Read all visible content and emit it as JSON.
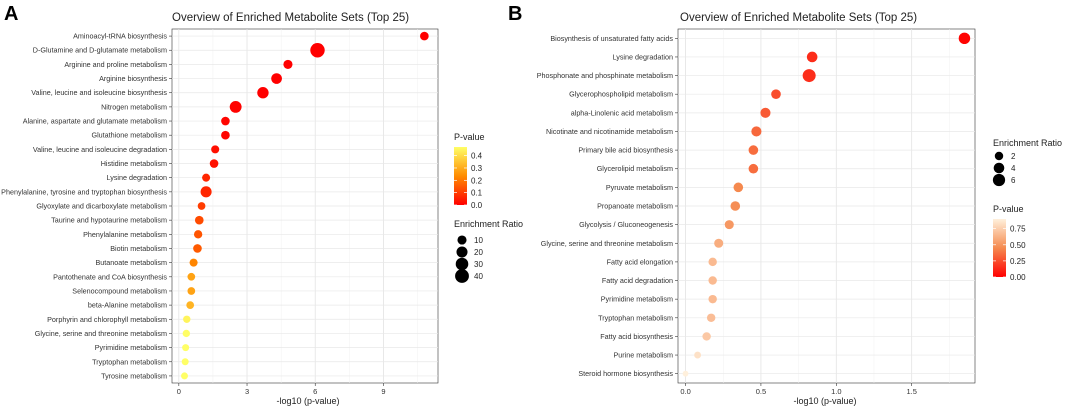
{
  "chart_data": [
    {
      "panel_label": "A",
      "type": "scatter",
      "title": "Overview of Enriched Metabolite Sets (Top 25)",
      "xlabel": "-log10 (p-value)",
      "ylabel": "",
      "xlim": [
        -0.3,
        11.4
      ],
      "xticks": [
        0,
        3,
        6,
        9
      ],
      "grid": true,
      "categories": [
        "Aminoacyl-tRNA biosynthesis",
        "D-Glutamine and D-glutamate metabolism",
        "Arginine and proline metabolism",
        "Arginine biosynthesis",
        "Valine, leucine and isoleucine biosynthesis",
        "Nitrogen metabolism",
        "Alanine, aspartate and glutamate metabolism",
        "Glutathione metabolism",
        "Valine, leucine and isoleucine degradation",
        "Histidine metabolism",
        "Lysine degradation",
        "Phenylalanine, tyrosine and tryptophan biosynthesis",
        "Glyoxylate and dicarboxylate metabolism",
        "Taurine and hypotaurine metabolism",
        "Phenylalanine metabolism",
        "Biotin metabolism",
        "Butanoate metabolism",
        "Pantothenate and CoA biosynthesis",
        "Selenocompound metabolism",
        "beta-Alanine metabolism",
        "Porphyrin and chlorophyll metabolism",
        "Glycine, serine and threonine metabolism",
        "Pyrimidine metabolism",
        "Tryptophan metabolism",
        "Tyrosine metabolism"
      ],
      "x": [
        10.8,
        6.1,
        4.8,
        4.3,
        3.7,
        2.5,
        2.05,
        2.05,
        1.6,
        1.55,
        1.2,
        1.2,
        1.0,
        0.9,
        0.85,
        0.82,
        0.65,
        0.55,
        0.55,
        0.5,
        0.35,
        0.33,
        0.3,
        0.28,
        0.25
      ],
      "pvalue": [
        0.0,
        0.0,
        0.0,
        0.0,
        0.0,
        0.003,
        0.009,
        0.009,
        0.025,
        0.028,
        0.063,
        0.063,
        0.1,
        0.126,
        0.141,
        0.151,
        0.224,
        0.282,
        0.282,
        0.316,
        0.447,
        0.468,
        0.5,
        0.525,
        0.562
      ],
      "enrichment_ratio": [
        8,
        45,
        10,
        18,
        22,
        25,
        8,
        8,
        6,
        8,
        6,
        20,
        5,
        8,
        7,
        8,
        6,
        5,
        5,
        5,
        4,
        4,
        3,
        3,
        3
      ],
      "color_legend": {
        "title": "P-value",
        "ticks": [
          0.0,
          0.1,
          0.2,
          0.3,
          0.4
        ],
        "tick_labels": [
          "0.0",
          "0.1",
          "0.2",
          "0.3",
          "0.4"
        ],
        "range": [
          0,
          0.47
        ]
      },
      "size_legend": {
        "title": "Enrichment Ratio",
        "values": [
          10,
          20,
          30,
          40
        ],
        "labels": [
          "10",
          "20",
          "30",
          "40"
        ],
        "max": 45
      },
      "colors": {
        "low": "#ff0000",
        "mid": "#ff8c00",
        "high": "#ffff66"
      }
    },
    {
      "panel_label": "B",
      "type": "scatter",
      "title": "Overview of Enriched Metabolite Sets (Top 25)",
      "xlabel": "-log10 (p-value)",
      "ylabel": "",
      "xlim": [
        -0.05,
        1.92
      ],
      "xticks": [
        0,
        0.5,
        1,
        1.5
      ],
      "xtick_labels": [
        "0.0",
        "0.5",
        "1.0",
        "1.5"
      ],
      "grid": true,
      "categories": [
        "Biosynthesis of unsaturated fatty acids",
        "Lysine degradation",
        "Phosphonate and phosphinate metabolism",
        "Glycerophospholipid metabolism",
        "alpha-Linolenic acid metabolism",
        "Nicotinate and nicotinamide metabolism",
        "Primary bile acid biosynthesis",
        "Glycerolipid metabolism",
        "Pyruvate metabolism",
        "Propanoate metabolism",
        "Glycolysis / Gluconeogenesis",
        "Glycine, serine and threonine metabolism",
        "Fatty acid elongation",
        "Fatty acid degradation",
        "Pyrimidine metabolism",
        "Tryptophan metabolism",
        "Fatty acid biosynthesis",
        "Purine metabolism",
        "Steroid hormone biosynthesis"
      ],
      "x": [
        1.85,
        0.84,
        0.82,
        0.6,
        0.53,
        0.47,
        0.45,
        0.45,
        0.35,
        0.33,
        0.29,
        0.22,
        0.18,
        0.18,
        0.18,
        0.17,
        0.14,
        0.08,
        0.0
      ],
      "pvalue": [
        0.014,
        0.145,
        0.151,
        0.251,
        0.295,
        0.339,
        0.355,
        0.355,
        0.447,
        0.468,
        0.513,
        0.603,
        0.661,
        0.661,
        0.661,
        0.676,
        0.724,
        0.832,
        0.99
      ],
      "enrichment_ratio": [
        5,
        4,
        7,
        3,
        3.5,
        3.5,
        3,
        3,
        3,
        3,
        2.5,
        2.5,
        2,
        2,
        2,
        2,
        2,
        1,
        0.5
      ],
      "color_legend": {
        "title": "P-value",
        "ticks": [
          0.0,
          0.25,
          0.5,
          0.75
        ],
        "tick_labels": [
          "0.00",
          "0.25",
          "0.50",
          "0.75"
        ],
        "range": [
          0,
          0.9
        ]
      },
      "size_legend": {
        "title": "Enrichment Ratio",
        "values": [
          2,
          4,
          6
        ],
        "labels": [
          "2",
          "4",
          "6"
        ],
        "max": 7
      },
      "colors": {
        "low": "#ff0000",
        "mid": "#f58a4f",
        "high": "#fff0dc"
      }
    }
  ]
}
